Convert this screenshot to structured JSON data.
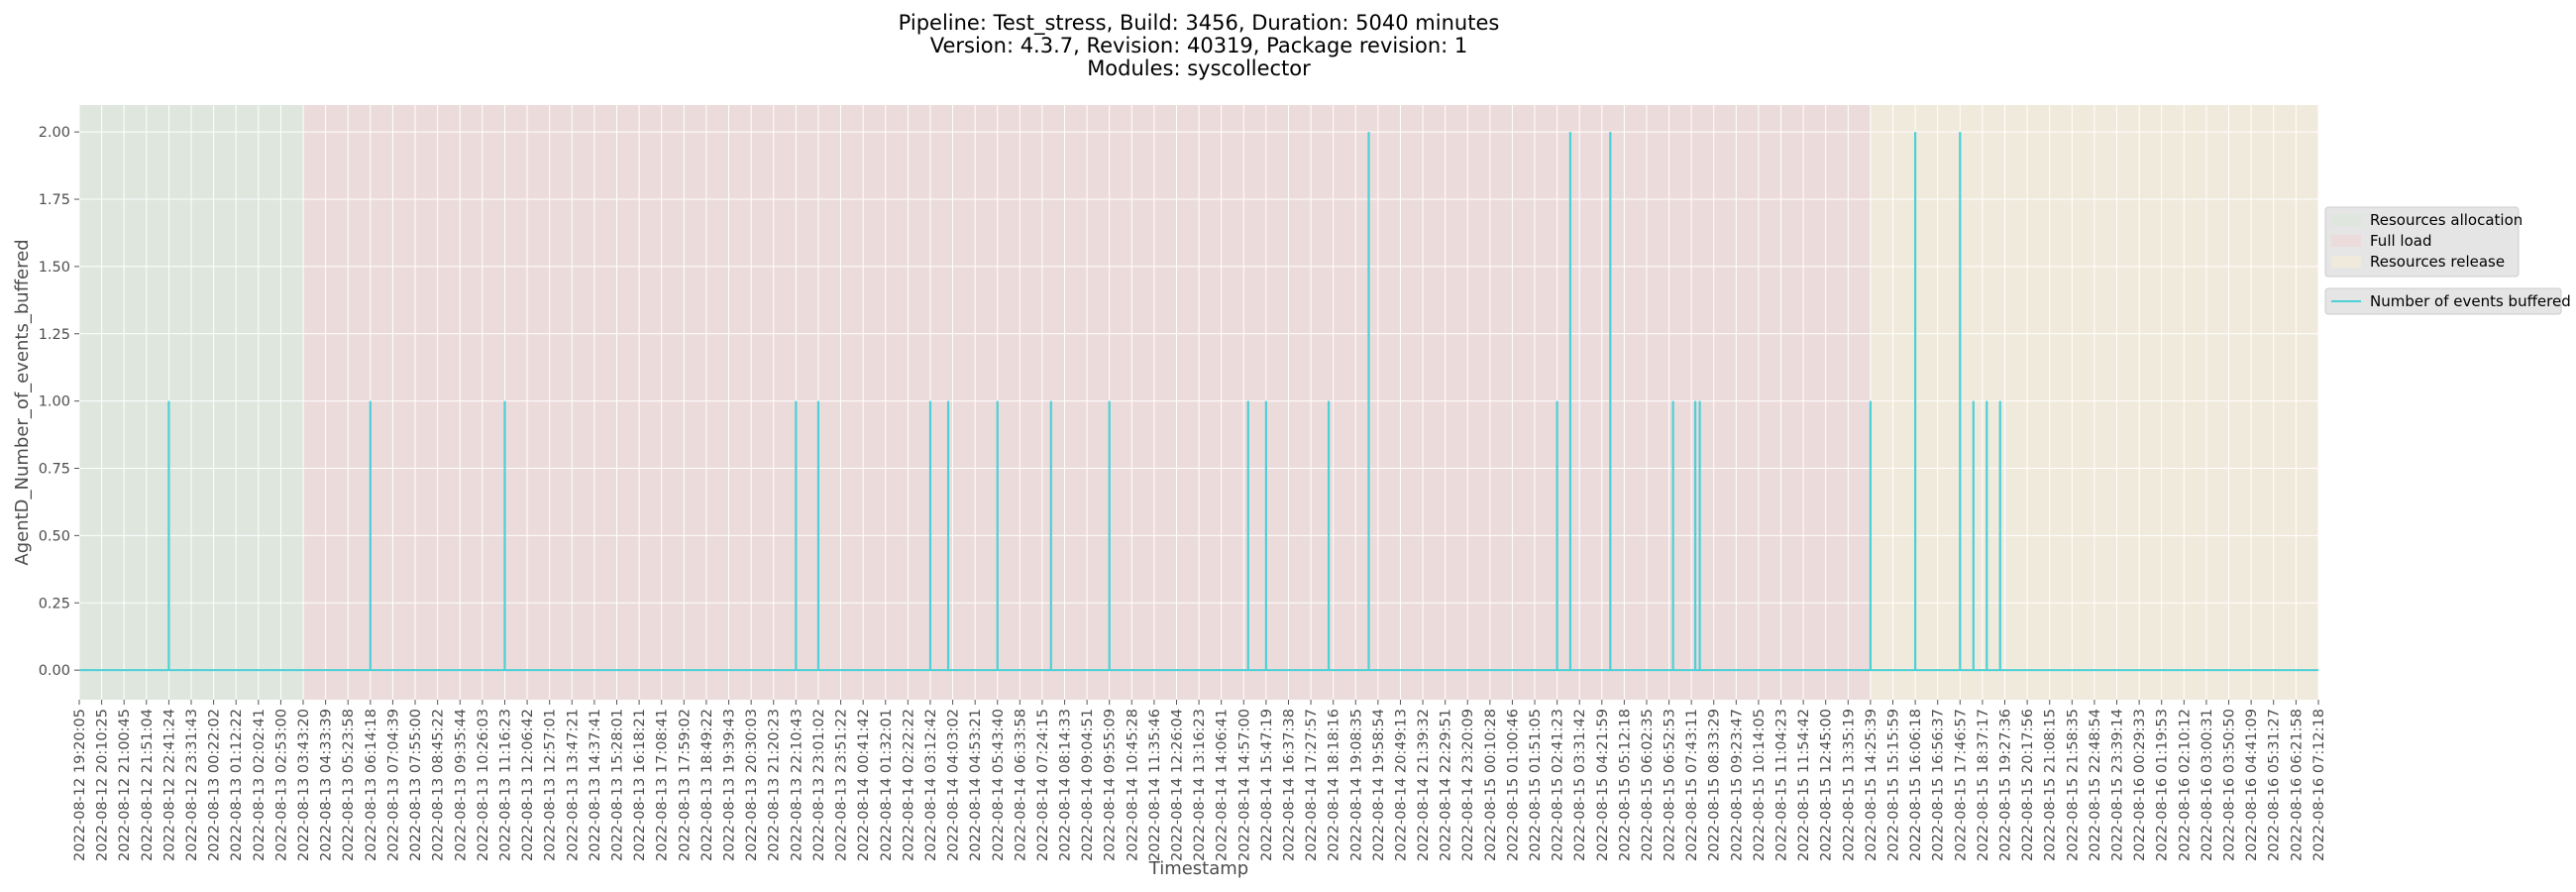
{
  "chart_data": {
    "type": "line",
    "title_lines": [
      "Pipeline: Test_stress, Build: 3456, Duration: 5040 minutes",
      "Version: 4.3.7, Revision: 40319, Package revision: 1",
      "Modules: syscollector"
    ],
    "xlabel": "Timestamp",
    "ylabel": "AgentD_Number_of_events_buffered",
    "ylim": [
      -0.11,
      2.1
    ],
    "y_ticks": [
      "0.00",
      "0.25",
      "0.50",
      "0.75",
      "1.00",
      "1.25",
      "1.50",
      "1.75",
      "2.00"
    ],
    "x_start": "2022-08-12 19:20:05",
    "x_end": "2022-08-16 07:12:18",
    "x_tick_labels": [
      "2022-08-12 19:20:05",
      "2022-08-12 20:10:25",
      "2022-08-12 21:00:45",
      "2022-08-12 21:51:04",
      "2022-08-12 22:41:24",
      "2022-08-12 23:31:43",
      "2022-08-13 00:22:02",
      "2022-08-13 01:12:22",
      "2022-08-13 02:02:41",
      "2022-08-13 02:53:00",
      "2022-08-13 03:43:20",
      "2022-08-13 04:33:39",
      "2022-08-13 05:23:58",
      "2022-08-13 06:14:18",
      "2022-08-13 07:04:39",
      "2022-08-13 07:55:00",
      "2022-08-13 08:45:22",
      "2022-08-13 09:35:44",
      "2022-08-13 10:26:03",
      "2022-08-13 11:16:23",
      "2022-08-13 12:06:42",
      "2022-08-13 12:57:01",
      "2022-08-13 13:47:21",
      "2022-08-13 14:37:41",
      "2022-08-13 15:28:01",
      "2022-08-13 16:18:21",
      "2022-08-13 17:08:41",
      "2022-08-13 17:59:02",
      "2022-08-13 18:49:22",
      "2022-08-13 19:39:43",
      "2022-08-13 20:30:03",
      "2022-08-13 21:20:23",
      "2022-08-13 22:10:43",
      "2022-08-13 23:01:02",
      "2022-08-13 23:51:22",
      "2022-08-14 00:41:42",
      "2022-08-14 01:32:01",
      "2022-08-14 02:22:22",
      "2022-08-14 03:12:42",
      "2022-08-14 04:03:02",
      "2022-08-14 04:53:21",
      "2022-08-14 05:43:40",
      "2022-08-14 06:33:58",
      "2022-08-14 07:24:15",
      "2022-08-14 08:14:33",
      "2022-08-14 09:04:51",
      "2022-08-14 09:55:09",
      "2022-08-14 10:45:28",
      "2022-08-14 11:35:46",
      "2022-08-14 12:26:04",
      "2022-08-14 13:16:23",
      "2022-08-14 14:06:41",
      "2022-08-14 14:57:00",
      "2022-08-14 15:47:19",
      "2022-08-14 16:37:38",
      "2022-08-14 17:27:57",
      "2022-08-14 18:18:16",
      "2022-08-14 19:08:35",
      "2022-08-14 19:58:54",
      "2022-08-14 20:49:13",
      "2022-08-14 21:39:32",
      "2022-08-14 22:29:51",
      "2022-08-14 23:20:09",
      "2022-08-15 00:10:28",
      "2022-08-15 01:00:46",
      "2022-08-15 01:51:05",
      "2022-08-15 02:41:23",
      "2022-08-15 03:31:42",
      "2022-08-15 04:21:59",
      "2022-08-15 05:12:18",
      "2022-08-15 06:02:35",
      "2022-08-15 06:52:53",
      "2022-08-15 07:43:11",
      "2022-08-15 08:33:29",
      "2022-08-15 09:23:47",
      "2022-08-15 10:14:05",
      "2022-08-15 11:04:23",
      "2022-08-15 11:54:42",
      "2022-08-15 12:45:00",
      "2022-08-15 13:35:19",
      "2022-08-15 14:25:39",
      "2022-08-15 15:15:59",
      "2022-08-15 16:06:18",
      "2022-08-15 16:56:37",
      "2022-08-15 17:46:57",
      "2022-08-15 18:37:17",
      "2022-08-15 19:27:36",
      "2022-08-15 20:17:56",
      "2022-08-15 21:08:15",
      "2022-08-15 21:58:35",
      "2022-08-15 22:48:54",
      "2022-08-15 23:39:14",
      "2022-08-16 00:29:33",
      "2022-08-16 01:19:53",
      "2022-08-16 02:10:12",
      "2022-08-16 03:00:31",
      "2022-08-16 03:50:50",
      "2022-08-16 04:41:09",
      "2022-08-16 05:31:27",
      "2022-08-16 06:21:58",
      "2022-08-16 07:12:18"
    ],
    "phases": [
      {
        "name": "Resources allocation",
        "start": "2022-08-12 19:20:05",
        "end": "2022-08-13 03:43:20",
        "color": "#d5e8d4"
      },
      {
        "name": "Full load",
        "start": "2022-08-13 03:43:20",
        "end": "2022-08-15 14:25:39",
        "color": "#f8cecc"
      },
      {
        "name": "Resources release",
        "start": "2022-08-15 14:25:39",
        "end": "2022-08-16 07:12:18",
        "color": "#fff2cc"
      }
    ],
    "series": [
      {
        "name": "Number of events buffered",
        "color": "#4dd0d6",
        "baseline": 0,
        "spikes": [
          {
            "t": "2022-08-12 22:41:24",
            "v": 1
          },
          {
            "t": "2022-08-13 06:14:18",
            "v": 1
          },
          {
            "t": "2022-08-13 11:16:23",
            "v": 1
          },
          {
            "t": "2022-08-13 22:10:43",
            "v": 1
          },
          {
            "t": "2022-08-13 23:01:02",
            "v": 1
          },
          {
            "t": "2022-08-14 03:12:42",
            "v": 1
          },
          {
            "t": "2022-08-14 03:53:00",
            "v": 1
          },
          {
            "t": "2022-08-14 05:43:40",
            "v": 1
          },
          {
            "t": "2022-08-14 07:44:00",
            "v": 1
          },
          {
            "t": "2022-08-14 09:55:09",
            "v": 1
          },
          {
            "t": "2022-08-14 15:07:00",
            "v": 1
          },
          {
            "t": "2022-08-14 15:47:19",
            "v": 1
          },
          {
            "t": "2022-08-14 18:08:00",
            "v": 1
          },
          {
            "t": "2022-08-14 19:38:00",
            "v": 2
          },
          {
            "t": "2022-08-15 02:41:23",
            "v": 1
          },
          {
            "t": "2022-08-15 03:11:00",
            "v": 2
          },
          {
            "t": "2022-08-15 04:41:00",
            "v": 2
          },
          {
            "t": "2022-08-15 07:02:00",
            "v": 1
          },
          {
            "t": "2022-08-15 07:52:00",
            "v": 1
          },
          {
            "t": "2022-08-15 08:02:00",
            "v": 1
          },
          {
            "t": "2022-08-15 14:25:39",
            "v": 1
          },
          {
            "t": "2022-08-15 16:06:18",
            "v": 2
          },
          {
            "t": "2022-08-15 17:46:57",
            "v": 2
          },
          {
            "t": "2022-08-15 18:17:00",
            "v": 1
          },
          {
            "t": "2022-08-15 18:47:00",
            "v": 1
          },
          {
            "t": "2022-08-15 19:17:00",
            "v": 1
          }
        ]
      }
    ],
    "legend": {
      "placement": "right",
      "phase_entries": [
        "Resources allocation",
        "Full load",
        "Resources release"
      ],
      "series_entries": [
        "Number of events buffered"
      ]
    },
    "grid": true,
    "background": "#e5e5e5",
    "phase_opacity": 0.4,
    "text_color": "#4d4d4d"
  }
}
